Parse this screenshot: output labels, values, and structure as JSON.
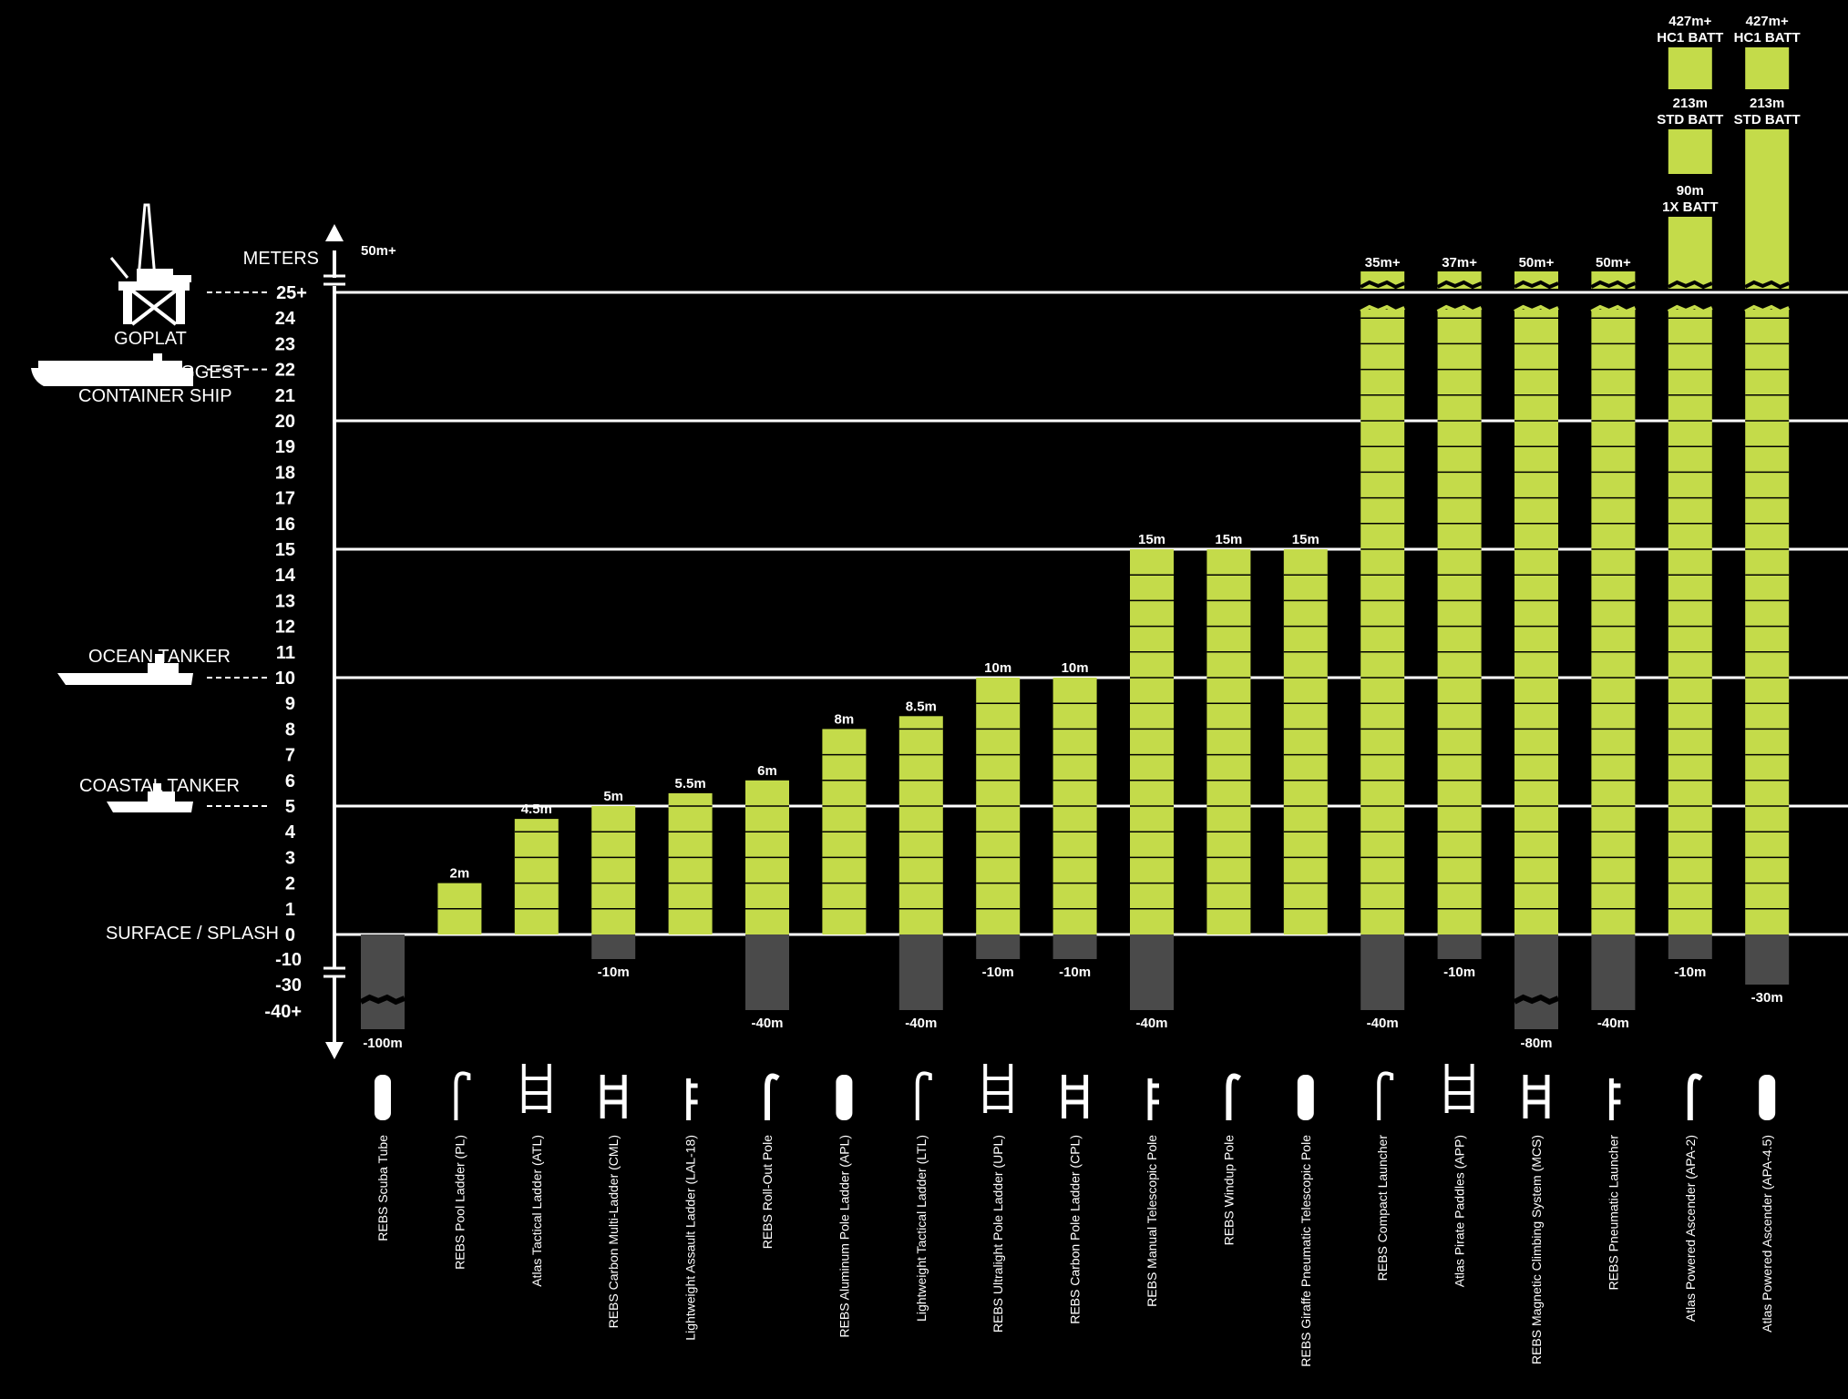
{
  "colors": {
    "background": "#000000",
    "bar": "#c4db4a",
    "underwater": "#4a4a4a",
    "text": "#ffffff",
    "line": "#ffffff"
  },
  "axis_label": "METERS",
  "axis_top_label": "50m+",
  "surface_label": "SURFACE / SPLASH",
  "references": [
    {
      "label_lines": [
        "GOPLAT"
      ],
      "value": 25,
      "icon": "oil-platform-icon"
    },
    {
      "label_lines": [
        "WORLDS BIGGEST",
        "CONTAINER SHIP"
      ],
      "value": 22,
      "icon": "container-ship-icon"
    },
    {
      "label_lines": [
        "OCEAN TANKER"
      ],
      "value": 10,
      "icon": "ocean-tanker-icon"
    },
    {
      "label_lines": [
        "COASTAL TANKER"
      ],
      "value": 5,
      "icon": "coastal-tanker-icon"
    }
  ],
  "chart_data": {
    "type": "bar",
    "ylabel": "METERS",
    "y_ticks_above": [
      "25+",
      "24",
      "23",
      "22",
      "21",
      "20",
      "19",
      "18",
      "17",
      "16",
      "15",
      "14",
      "13",
      "12",
      "11",
      "10",
      "9",
      "8",
      "7",
      "6",
      "5",
      "4",
      "3",
      "2",
      "1",
      "0"
    ],
    "y_ticks_below": [
      "-10",
      "-30",
      "-40+"
    ],
    "ylim_above": [
      0,
      25
    ],
    "y_axis_break": true,
    "grid_lines_at": [
      25,
      20,
      15,
      10,
      5,
      0
    ],
    "series": [
      {
        "name": "REBS Scuba Tube",
        "height": 0,
        "depth": -100,
        "height_label": "",
        "depth_label": "-100m",
        "icon": "scuba-tube-icon"
      },
      {
        "name": "REBS Pool Ladder (PL)",
        "height": 2,
        "depth": 0,
        "height_label": "2m",
        "depth_label": "",
        "icon": "pool-ladder-icon"
      },
      {
        "name": "Atlas Tactical Ladder (ATL)",
        "height": 4.5,
        "depth": 0,
        "height_label": "4.5m",
        "depth_label": "",
        "icon": "tactical-ladder-icon"
      },
      {
        "name": "REBS Carbon Multi-Ladder (CML)",
        "height": 5,
        "depth": -10,
        "height_label": "5m",
        "depth_label": "-10m",
        "icon": "multi-ladder-icon"
      },
      {
        "name": "Lightweight Assault Ladder (LAL-18)",
        "height": 5.5,
        "depth": 0,
        "height_label": "5.5m",
        "depth_label": "",
        "icon": "assault-ladder-icon"
      },
      {
        "name": "REBS Roll-Out Pole",
        "height": 6,
        "depth": -40,
        "height_label": "6m",
        "depth_label": "-40m",
        "icon": "roll-out-pole-icon"
      },
      {
        "name": "REBS Aluminum Pole Ladder (APL)",
        "height": 8,
        "depth": 0,
        "height_label": "8m",
        "depth_label": "",
        "icon": "aluminum-pole-ladder-icon"
      },
      {
        "name": "Lightweight Tactical Ladder (LTL)",
        "height": 8.5,
        "depth": -40,
        "height_label": "8.5m",
        "depth_label": "-40m",
        "icon": "lightweight-tactical-ladder-icon"
      },
      {
        "name": "REBS Ultralight Pole Ladder (UPL)",
        "height": 10,
        "depth": -10,
        "height_label": "10m",
        "depth_label": "-10m",
        "icon": "ultralight-pole-ladder-icon"
      },
      {
        "name": "REBS Carbon Pole Ladder (CPL)",
        "height": 10,
        "depth": -10,
        "height_label": "10m",
        "depth_label": "-10m",
        "icon": "carbon-pole-ladder-icon"
      },
      {
        "name": "REBS Manual Telescopic Pole",
        "height": 15,
        "depth": -40,
        "height_label": "15m",
        "depth_label": "-40m",
        "icon": "manual-telescopic-pole-icon"
      },
      {
        "name": "REBS Windup Pole",
        "height": 15,
        "depth": 0,
        "height_label": "15m",
        "depth_label": "",
        "icon": "windup-pole-icon"
      },
      {
        "name": "REBS Giraffe Pneumatic Telescopic Pole",
        "height": 15,
        "depth": 0,
        "height_label": "15m",
        "depth_label": "",
        "icon": "giraffe-pole-icon"
      },
      {
        "name": "REBS Compact Launcher",
        "height": 35,
        "depth": -40,
        "height_label": "35m+",
        "depth_label": "-40m",
        "icon": "compact-launcher-icon"
      },
      {
        "name": "Atlas Pirate Paddles (APP)",
        "height": 37,
        "depth": -10,
        "height_label": "37m+",
        "depth_label": "-10m",
        "icon": "pirate-paddles-icon"
      },
      {
        "name": "REBS Magnetic Climbing System (MCS)",
        "height": 50,
        "depth": -80,
        "height_label": "50m+",
        "depth_label": "-80m",
        "icon": "magnetic-climbing-icon"
      },
      {
        "name": "REBS Pneumatic Launcher",
        "height": 50,
        "depth": -40,
        "height_label": "50m+",
        "depth_label": "-40m",
        "icon": "pneumatic-launcher-icon"
      },
      {
        "name": "Atlas Powered Ascender (APA-2)",
        "height": 427,
        "depth": -10,
        "height_label": "90m 1X BATT",
        "depth_label": "-10m",
        "icon": "powered-ascender-icon",
        "tiers": [
          "90m 1X BATT",
          "213m STD BATT",
          "427m+ HC1 BATT"
        ]
      },
      {
        "name": "Atlas Powered Ascender (APA-4.5)",
        "height": 427,
        "depth": -30,
        "height_label": "213m STD BATT",
        "depth_label": "-30m",
        "icon": "powered-ascender-icon",
        "tiers": [
          "213m STD BATT",
          "427m+ HC1 BATT"
        ]
      }
    ]
  }
}
